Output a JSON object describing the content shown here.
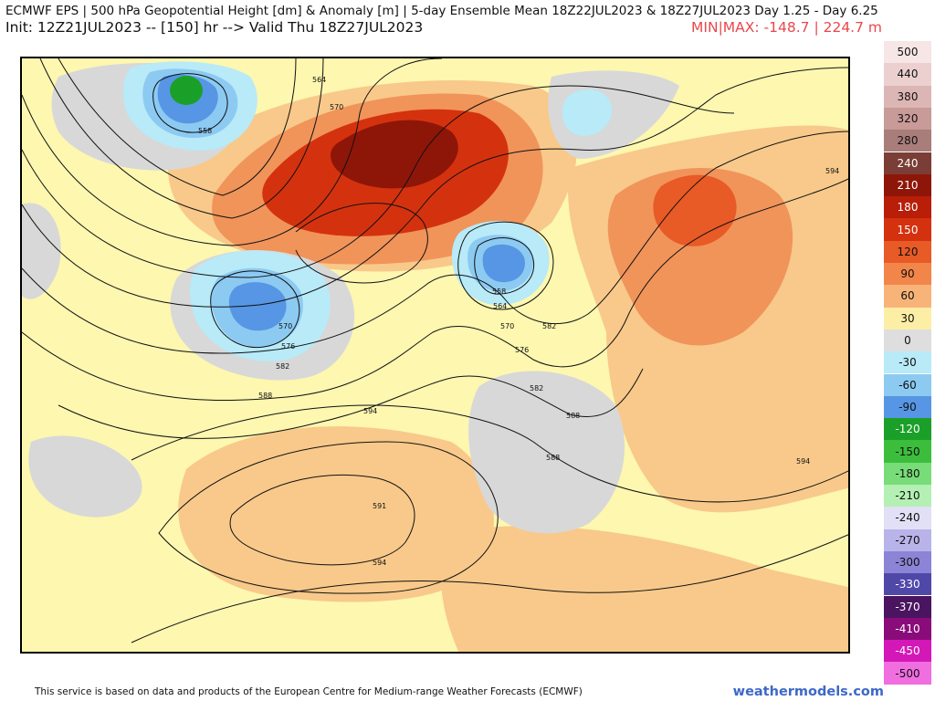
{
  "header": {
    "title_line1": "ECMWF EPS | 500 hPa Geopotential Height [dm] & Anomaly [m] | 5-day Ensemble Mean 18Z22JUL2023 & 18Z27JUL2023  Day 1.25 - Day 6.25",
    "title_line2": "Init: 12Z21JUL2023 -- [150] hr --> Valid Thu 18Z27JUL2023",
    "minmax": "MIN|MAX: -148.7 | 224.7 m"
  },
  "colorbar": {
    "entries": [
      {
        "label": "500",
        "color": "#f7e6e6"
      },
      {
        "label": "440",
        "color": "#ecd0d0"
      },
      {
        "label": "380",
        "color": "#dcb6b4"
      },
      {
        "label": "320",
        "color": "#c89a98"
      },
      {
        "label": "280",
        "color": "#a87d7a"
      },
      {
        "label": "240",
        "color": "#7a3e36"
      },
      {
        "label": "210",
        "color": "#8e1608"
      },
      {
        "label": "180",
        "color": "#b81e08"
      },
      {
        "label": "150",
        "color": "#d4320e"
      },
      {
        "label": "120",
        "color": "#e85a26"
      },
      {
        "label": "90",
        "color": "#f2864a"
      },
      {
        "label": "60",
        "color": "#f8b478"
      },
      {
        "label": "30",
        "color": "#fdeea6"
      },
      {
        "label": "0",
        "color": "#dedede"
      },
      {
        "label": "-30",
        "color": "#b8eaf8"
      },
      {
        "label": "-60",
        "color": "#8ccaf2"
      },
      {
        "label": "-90",
        "color": "#5696e4"
      },
      {
        "label": "-120",
        "color": "#1aa028"
      },
      {
        "label": "-150",
        "color": "#3cbe3c"
      },
      {
        "label": "-180",
        "color": "#78dc78"
      },
      {
        "label": "-210",
        "color": "#b4f0b4"
      },
      {
        "label": "-240",
        "color": "#e2e0f6"
      },
      {
        "label": "-270",
        "color": "#b8b4ea"
      },
      {
        "label": "-300",
        "color": "#8c84d6"
      },
      {
        "label": "-330",
        "color": "#5048a8"
      },
      {
        "label": "-370",
        "color": "#4a1460"
      },
      {
        "label": "-410",
        "color": "#8a0c7a"
      },
      {
        "label": "-450",
        "color": "#d418b8"
      },
      {
        "label": "-500",
        "color": "#f06ee0"
      }
    ]
  },
  "map": {
    "contour_labels": [
      "564",
      "570",
      "558",
      "594",
      "558",
      "564",
      "570",
      "576",
      "582",
      "588",
      "570",
      "576",
      "582",
      "588",
      "594",
      "591",
      "594",
      "588",
      "594",
      "582"
    ],
    "colors": {
      "background": "#fdf7b0",
      "light_orange": "#f8c98a",
      "orange": "#f0945a",
      "red": "#d4320e",
      "dark_red": "#8e1608",
      "grey": "#d8d8d8",
      "light_blue": "#b8eaf8",
      "blue": "#5696e4",
      "green": "#1aa028"
    }
  },
  "footer": {
    "disclaimer": "This service is based on data and products of the European Centre for Medium-range Weather Forecasts (ECMWF)",
    "brand": "weathermodels.com"
  }
}
